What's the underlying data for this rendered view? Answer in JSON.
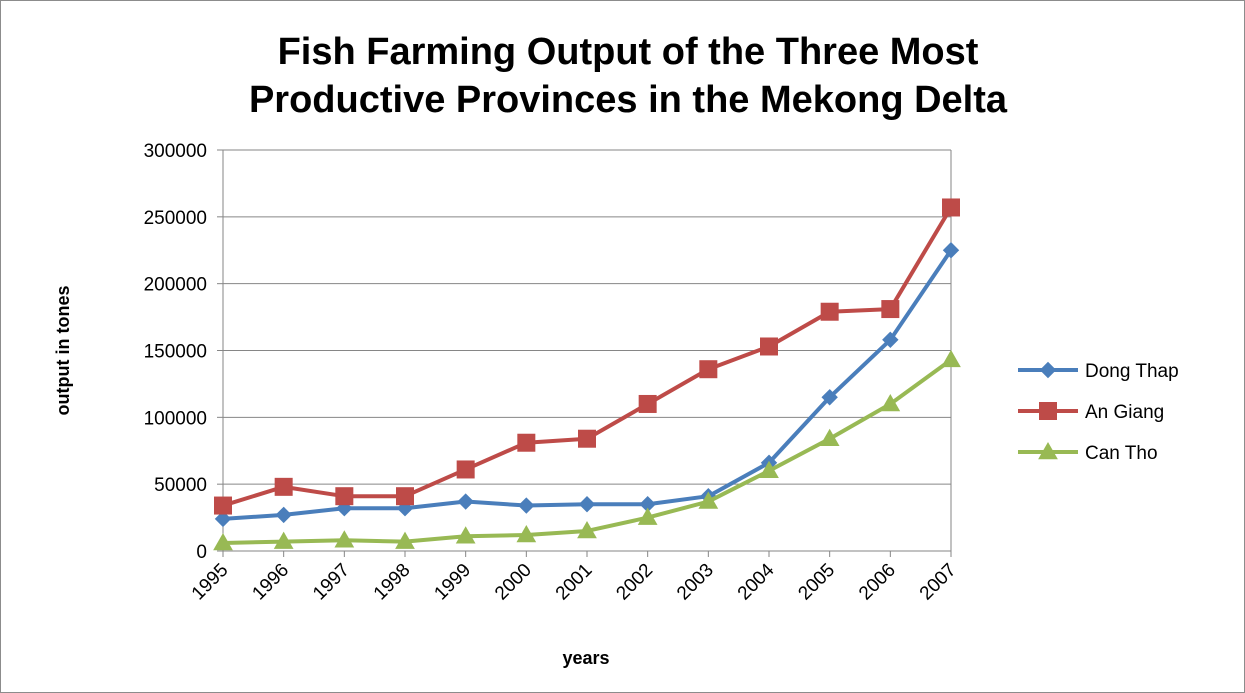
{
  "chart_data": {
    "type": "line",
    "title_lines": [
      "Fish Farming Output of the Three Most",
      "Productive Provinces in the Mekong Delta"
    ],
    "xlabel": "years",
    "ylabel": "output in tones",
    "categories": [
      "1995",
      "1996",
      "1997",
      "1998",
      "1999",
      "2000",
      "2001",
      "2002",
      "2003",
      "2004",
      "2005",
      "2006",
      "2007"
    ],
    "ylim": [
      0,
      300000
    ],
    "yticks": [
      "0",
      "50000",
      "100000",
      "150000",
      "200000",
      "250000",
      "300000"
    ],
    "grid": true,
    "legend_position": "right",
    "series": [
      {
        "name": "Dong Thap",
        "color": "#4a7ebb",
        "marker": "diamond",
        "values": [
          24000,
          27000,
          32000,
          32000,
          37000,
          34000,
          35000,
          35000,
          41000,
          66000,
          115000,
          158000,
          225000
        ]
      },
      {
        "name": "An Giang",
        "color": "#be4b48",
        "marker": "square",
        "values": [
          34000,
          48000,
          41000,
          41000,
          61000,
          81000,
          84000,
          110000,
          136000,
          153000,
          179000,
          181000,
          257000
        ]
      },
      {
        "name": "Can Tho",
        "color": "#98b954",
        "marker": "triangle",
        "values": [
          6000,
          7000,
          8000,
          7000,
          11000,
          12000,
          15000,
          25000,
          37000,
          60000,
          84000,
          110000,
          143000
        ]
      }
    ]
  }
}
